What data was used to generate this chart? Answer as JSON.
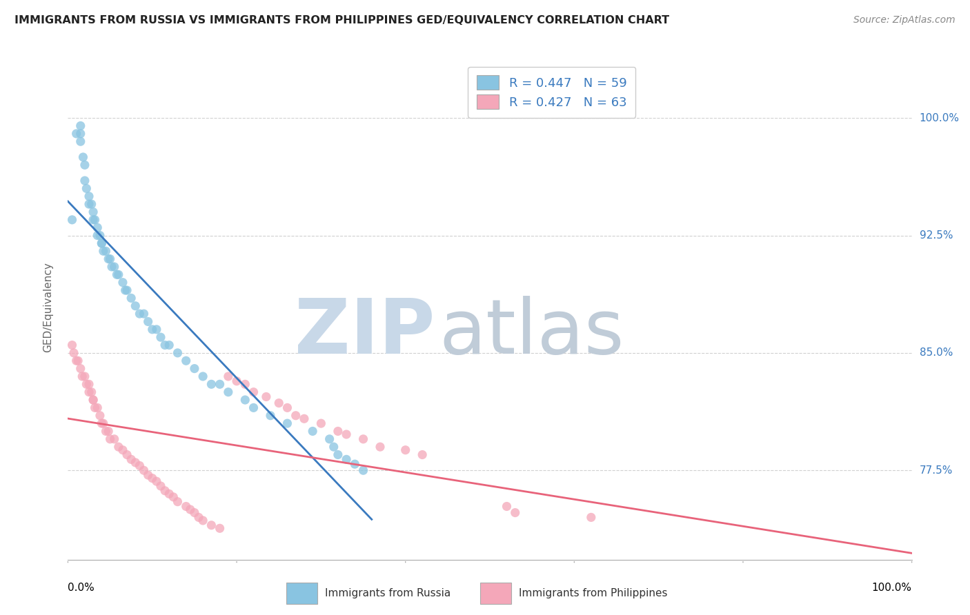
{
  "title": "IMMIGRANTS FROM RUSSIA VS IMMIGRANTS FROM PHILIPPINES GED/EQUIVALENCY CORRELATION CHART",
  "source": "Source: ZipAtlas.com",
  "ylabel": "GED/Equivalency",
  "ytick_labels": [
    "100.0%",
    "92.5%",
    "85.0%",
    "77.5%"
  ],
  "ytick_values": [
    1.0,
    0.925,
    0.85,
    0.775
  ],
  "xmin": 0.0,
  "xmax": 1.0,
  "ymin": 0.718,
  "ymax": 1.04,
  "russia_R": 0.447,
  "russia_N": 59,
  "philippines_R": 0.427,
  "philippines_N": 63,
  "russia_color": "#89c4e1",
  "philippines_color": "#f4a7b9",
  "russia_line_color": "#3a7abf",
  "philippines_line_color": "#e8637a",
  "watermark_zip_color": "#c8d8e8",
  "watermark_atlas_color": "#c0ccd8",
  "russia_x": [
    0.005,
    0.01,
    0.015,
    0.015,
    0.015,
    0.018,
    0.02,
    0.02,
    0.022,
    0.025,
    0.025,
    0.028,
    0.03,
    0.03,
    0.032,
    0.035,
    0.035,
    0.038,
    0.04,
    0.04,
    0.042,
    0.045,
    0.048,
    0.05,
    0.052,
    0.055,
    0.058,
    0.06,
    0.065,
    0.068,
    0.07,
    0.075,
    0.08,
    0.085,
    0.09,
    0.095,
    0.1,
    0.105,
    0.11,
    0.115,
    0.12,
    0.13,
    0.14,
    0.15,
    0.16,
    0.17,
    0.18,
    0.19,
    0.21,
    0.22,
    0.24,
    0.26,
    0.29,
    0.31,
    0.315,
    0.32,
    0.33,
    0.34,
    0.35
  ],
  "russia_y": [
    0.935,
    0.99,
    0.995,
    0.99,
    0.985,
    0.975,
    0.97,
    0.96,
    0.955,
    0.95,
    0.945,
    0.945,
    0.94,
    0.935,
    0.935,
    0.93,
    0.925,
    0.925,
    0.92,
    0.92,
    0.915,
    0.915,
    0.91,
    0.91,
    0.905,
    0.905,
    0.9,
    0.9,
    0.895,
    0.89,
    0.89,
    0.885,
    0.88,
    0.875,
    0.875,
    0.87,
    0.865,
    0.865,
    0.86,
    0.855,
    0.855,
    0.85,
    0.845,
    0.84,
    0.835,
    0.83,
    0.83,
    0.825,
    0.82,
    0.815,
    0.81,
    0.805,
    0.8,
    0.795,
    0.79,
    0.785,
    0.782,
    0.779,
    0.775
  ],
  "philippines_x": [
    0.005,
    0.007,
    0.01,
    0.012,
    0.015,
    0.017,
    0.02,
    0.022,
    0.025,
    0.025,
    0.028,
    0.03,
    0.03,
    0.032,
    0.035,
    0.038,
    0.04,
    0.042,
    0.045,
    0.048,
    0.05,
    0.055,
    0.06,
    0.065,
    0.07,
    0.075,
    0.08,
    0.085,
    0.09,
    0.095,
    0.1,
    0.105,
    0.11,
    0.115,
    0.12,
    0.125,
    0.13,
    0.14,
    0.145,
    0.15,
    0.155,
    0.16,
    0.17,
    0.18,
    0.19,
    0.2,
    0.21,
    0.22,
    0.235,
    0.25,
    0.26,
    0.27,
    0.28,
    0.3,
    0.32,
    0.33,
    0.35,
    0.37,
    0.4,
    0.42,
    0.52,
    0.53,
    0.62
  ],
  "philippines_y": [
    0.855,
    0.85,
    0.845,
    0.845,
    0.84,
    0.835,
    0.835,
    0.83,
    0.83,
    0.825,
    0.825,
    0.82,
    0.82,
    0.815,
    0.815,
    0.81,
    0.805,
    0.805,
    0.8,
    0.8,
    0.795,
    0.795,
    0.79,
    0.788,
    0.785,
    0.782,
    0.78,
    0.778,
    0.775,
    0.772,
    0.77,
    0.768,
    0.765,
    0.762,
    0.76,
    0.758,
    0.755,
    0.752,
    0.75,
    0.748,
    0.745,
    0.743,
    0.74,
    0.738,
    0.835,
    0.832,
    0.83,
    0.825,
    0.822,
    0.818,
    0.815,
    0.81,
    0.808,
    0.805,
    0.8,
    0.798,
    0.795,
    0.79,
    0.788,
    0.785,
    0.752,
    0.748,
    0.745
  ]
}
